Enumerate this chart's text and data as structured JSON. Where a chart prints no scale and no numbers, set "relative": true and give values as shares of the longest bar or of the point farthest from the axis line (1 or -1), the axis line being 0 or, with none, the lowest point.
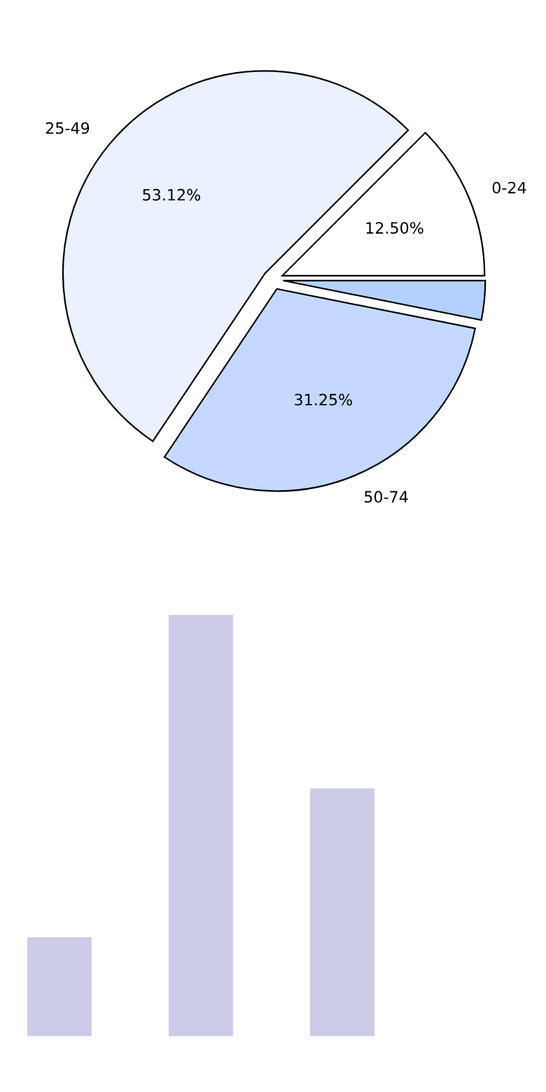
{
  "chart_data": [
    {
      "type": "pie",
      "categories": [
        "0-24",
        "25-49",
        "50-74",
        null
      ],
      "values": [
        12.5,
        53.12,
        31.25,
        3.13
      ],
      "colors": [
        "#ffffff",
        "#eaf1ff",
        "#c4d9ff",
        "#b3d0ff"
      ],
      "value_labels": [
        "12.50%",
        "53.12%",
        "31.25%",
        null
      ]
    },
    {
      "type": "bar",
      "relative": true,
      "categories": [
        null,
        null,
        null
      ],
      "values": [
        0.235,
        1,
        0.588
      ],
      "color": "#ccccE6"
    }
  ]
}
